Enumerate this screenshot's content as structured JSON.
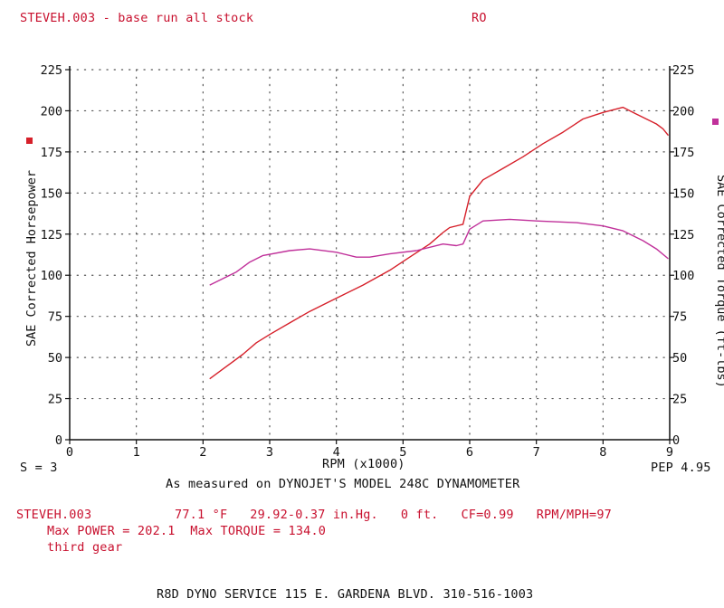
{
  "header": {
    "title": "STEVEH.003 - base run all stock",
    "run_tag": "RO"
  },
  "colors": {
    "horsepower": "#d6202a",
    "torque": "#c0309a",
    "info_text": "#c8102e",
    "axes": "#111111"
  },
  "footer": {
    "smoothing": "S = 3",
    "pep": "PEP 4.95",
    "measured": "As measured on DYNOJET'S MODEL 248C DYNAMOMETER",
    "run_file": "STEVEH.003",
    "conditions": "77.1 °F   29.92-0.37 in.Hg.   0 ft.   CF=0.99   RPM/MPH=97",
    "max_values": "Max POWER = 202.1  Max TORQUE = 134.0",
    "gear": "third gear",
    "shop": "R8D DYNO SERVICE 115 E. GARDENA BLVD. 310-516-1003"
  },
  "chart_data": {
    "type": "line",
    "xlabel": "RPM (x1000)",
    "ylabel_left": "SAE Corrected Horsepower",
    "ylabel_right": "SAE Corrected Torque (ft-lbs)",
    "xlim": [
      0,
      9
    ],
    "ylim": [
      0,
      225
    ],
    "x_ticks": [
      0,
      1,
      2,
      3,
      4,
      5,
      6,
      7,
      8,
      9
    ],
    "y_ticks": [
      0,
      25,
      50,
      75,
      100,
      125,
      150,
      175,
      200,
      225
    ],
    "grid": "dotted",
    "series": [
      {
        "name": "horsepower",
        "axis": "left",
        "points": [
          [
            2.1,
            37
          ],
          [
            2.3,
            43
          ],
          [
            2.6,
            52
          ],
          [
            2.8,
            59
          ],
          [
            3.0,
            64
          ],
          [
            3.3,
            71
          ],
          [
            3.6,
            78
          ],
          [
            3.9,
            84
          ],
          [
            4.1,
            88
          ],
          [
            4.4,
            94
          ],
          [
            4.8,
            103
          ],
          [
            5.1,
            111
          ],
          [
            5.4,
            119
          ],
          [
            5.6,
            126
          ],
          [
            5.7,
            129
          ],
          [
            5.9,
            131
          ],
          [
            6.0,
            148
          ],
          [
            6.2,
            158
          ],
          [
            6.5,
            165
          ],
          [
            6.8,
            172
          ],
          [
            7.1,
            180
          ],
          [
            7.4,
            187
          ],
          [
            7.7,
            195
          ],
          [
            8.0,
            199
          ],
          [
            8.3,
            202.1
          ],
          [
            8.5,
            198
          ],
          [
            8.8,
            192
          ],
          [
            8.9,
            189
          ],
          [
            8.98,
            185
          ]
        ]
      },
      {
        "name": "torque",
        "axis": "right",
        "points": [
          [
            2.1,
            94
          ],
          [
            2.3,
            98
          ],
          [
            2.5,
            102
          ],
          [
            2.7,
            108
          ],
          [
            2.9,
            112
          ],
          [
            3.3,
            115
          ],
          [
            3.6,
            116
          ],
          [
            4.0,
            114
          ],
          [
            4.3,
            111
          ],
          [
            4.5,
            111
          ],
          [
            4.8,
            113
          ],
          [
            5.2,
            115
          ],
          [
            5.6,
            119
          ],
          [
            5.8,
            118
          ],
          [
            5.9,
            119
          ],
          [
            6.0,
            128
          ],
          [
            6.2,
            133
          ],
          [
            6.6,
            134
          ],
          [
            7.0,
            133
          ],
          [
            7.6,
            132
          ],
          [
            8.0,
            130
          ],
          [
            8.3,
            127
          ],
          [
            8.6,
            121
          ],
          [
            8.8,
            116
          ],
          [
            8.98,
            110
          ]
        ]
      }
    ]
  }
}
